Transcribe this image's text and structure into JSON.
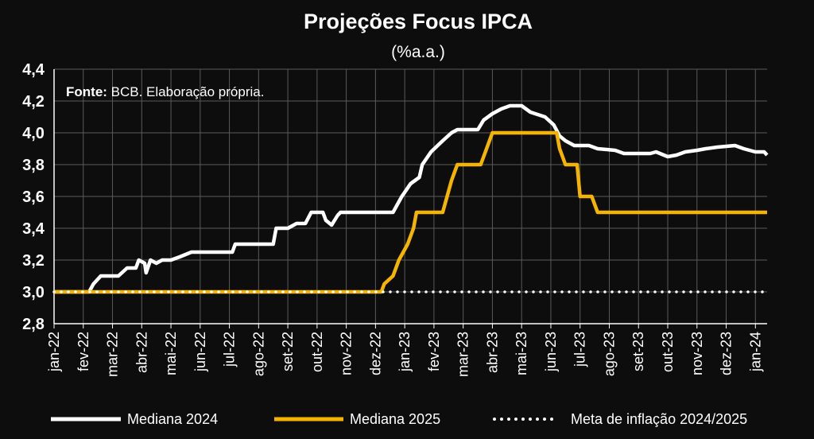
{
  "chart_data": {
    "type": "line",
    "title": "Projeções Focus IPCA",
    "subtitle": "(%a.a.)",
    "source_label": "Fonte:",
    "source_text": " BCB. Elaboração própria.",
    "xlabel": "",
    "ylabel": "",
    "ylim": [
      2.8,
      4.4
    ],
    "yticks": [
      "4,4",
      "4,2",
      "4,0",
      "3,8",
      "3,6",
      "3,4",
      "3,2",
      "3,0",
      "2,8"
    ],
    "ytick_values": [
      4.4,
      4.2,
      4.0,
      3.8,
      3.6,
      3.4,
      3.2,
      3.0,
      2.8
    ],
    "xticks": [
      "jan-22",
      "fev-22",
      "mar-22",
      "abr-22",
      "mai-22",
      "jun-22",
      "jul-22",
      "ago-22",
      "set-22",
      "out-22",
      "nov-22",
      "dez-22",
      "jan-23",
      "fev-23",
      "mar-23",
      "abr-23",
      "mai-23",
      "jun-23",
      "jul-23",
      "ago-23",
      "set-23",
      "out-23",
      "nov-23",
      "dez-23",
      "jan-24"
    ],
    "grid": true,
    "legend_position": "bottom",
    "series": [
      {
        "name": "Mediana 2024",
        "color": "#ffffff",
        "style": "solid",
        "points": [
          [
            0,
            3.0
          ],
          [
            1.2,
            3.0
          ],
          [
            1.35,
            3.05
          ],
          [
            1.6,
            3.1
          ],
          [
            2.2,
            3.1
          ],
          [
            2.5,
            3.15
          ],
          [
            2.8,
            3.15
          ],
          [
            2.9,
            3.2
          ],
          [
            3.1,
            3.18
          ],
          [
            3.15,
            3.12
          ],
          [
            3.3,
            3.2
          ],
          [
            3.5,
            3.18
          ],
          [
            3.7,
            3.2
          ],
          [
            4.0,
            3.2
          ],
          [
            4.3,
            3.22
          ],
          [
            4.7,
            3.25
          ],
          [
            5.5,
            3.25
          ],
          [
            6.1,
            3.25
          ],
          [
            6.2,
            3.3
          ],
          [
            6.5,
            3.3
          ],
          [
            7.5,
            3.3
          ],
          [
            7.6,
            3.4
          ],
          [
            8.0,
            3.4
          ],
          [
            8.3,
            3.43
          ],
          [
            8.6,
            3.43
          ],
          [
            8.8,
            3.5
          ],
          [
            9.2,
            3.5
          ],
          [
            9.3,
            3.45
          ],
          [
            9.5,
            3.42
          ],
          [
            9.7,
            3.48
          ],
          [
            9.8,
            3.5
          ],
          [
            10.5,
            3.5
          ],
          [
            11.0,
            3.5
          ],
          [
            11.6,
            3.5
          ],
          [
            11.9,
            3.6
          ],
          [
            12.2,
            3.68
          ],
          [
            12.5,
            3.72
          ],
          [
            12.6,
            3.8
          ],
          [
            12.9,
            3.88
          ],
          [
            13.3,
            3.95
          ],
          [
            13.6,
            4.0
          ],
          [
            13.8,
            4.02
          ],
          [
            14.5,
            4.02
          ],
          [
            14.7,
            4.08
          ],
          [
            15.0,
            4.12
          ],
          [
            15.3,
            4.15
          ],
          [
            15.6,
            4.17
          ],
          [
            16.0,
            4.17
          ],
          [
            16.3,
            4.13
          ],
          [
            16.8,
            4.1
          ],
          [
            17.1,
            4.05
          ],
          [
            17.3,
            3.98
          ],
          [
            17.5,
            3.95
          ],
          [
            17.8,
            3.92
          ],
          [
            18.3,
            3.92
          ],
          [
            18.6,
            3.9
          ],
          [
            19.2,
            3.89
          ],
          [
            19.5,
            3.87
          ],
          [
            20.0,
            3.87
          ],
          [
            20.4,
            3.87
          ],
          [
            20.6,
            3.88
          ],
          [
            21.0,
            3.85
          ],
          [
            21.3,
            3.86
          ],
          [
            21.6,
            3.88
          ],
          [
            22.0,
            3.89
          ],
          [
            22.3,
            3.9
          ],
          [
            22.7,
            3.91
          ],
          [
            23.3,
            3.92
          ],
          [
            23.6,
            3.9
          ],
          [
            24.0,
            3.88
          ],
          [
            24.3,
            3.88
          ],
          [
            24.4,
            3.86
          ]
        ]
      },
      {
        "name": "Mediana 2025",
        "color": "#f5b400",
        "style": "solid",
        "points": [
          [
            0,
            3.0
          ],
          [
            11.2,
            3.0
          ],
          [
            11.3,
            3.05
          ],
          [
            11.6,
            3.1
          ],
          [
            11.8,
            3.2
          ],
          [
            12.1,
            3.3
          ],
          [
            12.3,
            3.4
          ],
          [
            12.4,
            3.5
          ],
          [
            13.3,
            3.5
          ],
          [
            13.6,
            3.7
          ],
          [
            13.8,
            3.8
          ],
          [
            14.6,
            3.8
          ],
          [
            14.8,
            3.9
          ],
          [
            15.0,
            4.0
          ],
          [
            17.2,
            4.0
          ],
          [
            17.3,
            3.9
          ],
          [
            17.5,
            3.8
          ],
          [
            17.9,
            3.8
          ],
          [
            18.0,
            3.6
          ],
          [
            18.4,
            3.6
          ],
          [
            18.6,
            3.5
          ],
          [
            24.4,
            3.5
          ]
        ]
      },
      {
        "name": "Meta de inflação 2024/2025",
        "color": "#ffffff",
        "style": "dotted",
        "points": [
          [
            0,
            3.0
          ],
          [
            24.4,
            3.0
          ]
        ]
      }
    ]
  }
}
